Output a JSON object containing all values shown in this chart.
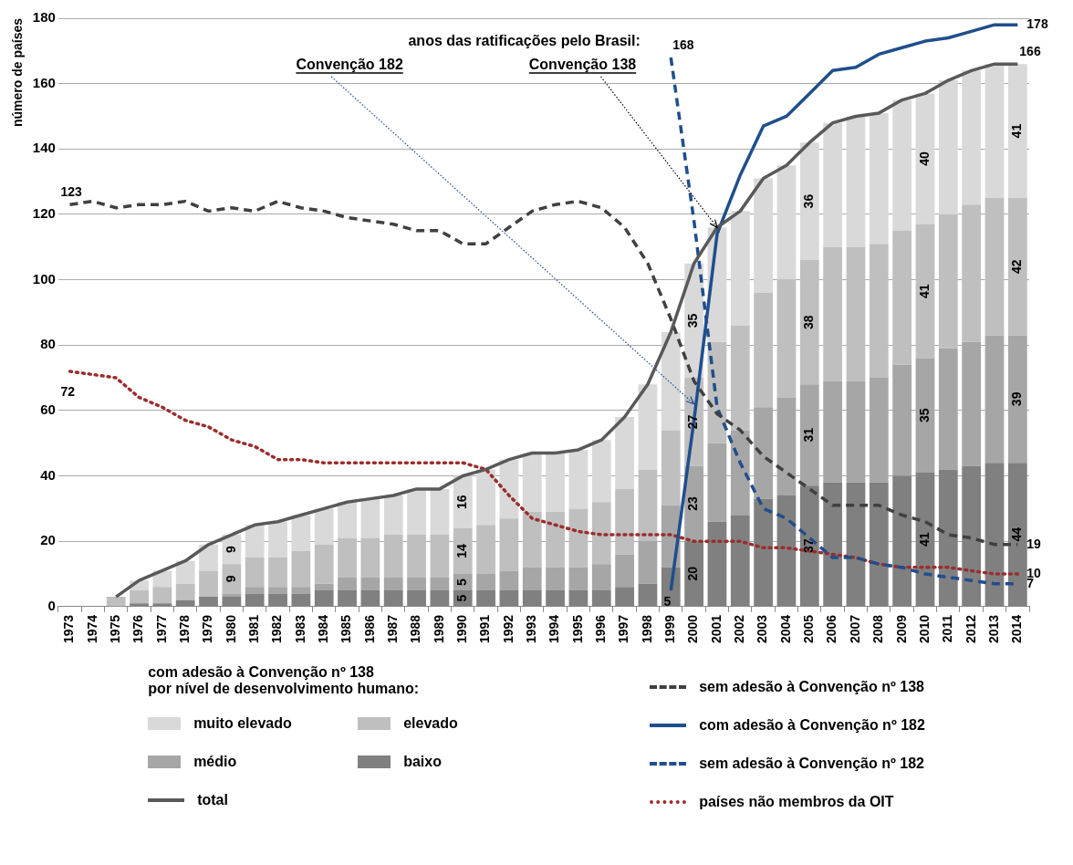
{
  "chart_data": {
    "type": "bar",
    "stacked": true,
    "ylabel": "número de países",
    "legend_title": "com adesão à Convenção nº 138\npor nível de desenvolvimento humano:",
    "legend": "bottom",
    "grid": "y",
    "ylim": [
      0,
      180
    ],
    "yticks": [
      0,
      20,
      40,
      60,
      80,
      100,
      120,
      140,
      160,
      180
    ],
    "categories": [
      "1973",
      "1974",
      "1975",
      "1976",
      "1977",
      "1978",
      "1979",
      "1980",
      "1981",
      "1982",
      "1983",
      "1984",
      "1985",
      "1986",
      "1987",
      "1988",
      "1989",
      "1990",
      "1991",
      "1992",
      "1993",
      "1994",
      "1995",
      "1996",
      "1997",
      "1998",
      "1999",
      "2000",
      "2001",
      "2002",
      "2003",
      "2004",
      "2005",
      "2006",
      "2007",
      "2008",
      "2009",
      "2010",
      "2011",
      "2012",
      "2013",
      "2014"
    ],
    "annotations": [
      "anos das ratificações pelo Brasil:",
      {
        "text": "Convenção 182",
        "x": "2000",
        "y": 62
      },
      {
        "text": "Convenção 138",
        "x": "2001",
        "y": 116
      }
    ],
    "series": [
      {
        "name": "baixo",
        "color": "#808080",
        "values": [
          null,
          null,
          0,
          1,
          1,
          2,
          3,
          3,
          4,
          4,
          4,
          5,
          5,
          5,
          5,
          5,
          5,
          5,
          5,
          5,
          5,
          5,
          5,
          5,
          6,
          7,
          12,
          20,
          26,
          28,
          33,
          34,
          37,
          38,
          38,
          38,
          40,
          41,
          42,
          43,
          44,
          44
        ],
        "value_labels": [
          null,
          null,
          null,
          null,
          null,
          null,
          null,
          null,
          null,
          null,
          null,
          null,
          null,
          null,
          null,
          null,
          null,
          "5",
          null,
          null,
          null,
          null,
          null,
          null,
          null,
          null,
          null,
          "20",
          null,
          null,
          null,
          null,
          "37",
          null,
          null,
          null,
          null,
          "41",
          null,
          null,
          null,
          "44"
        ]
      },
      {
        "name": "médio",
        "color": "#a6a6a6",
        "values": [
          null,
          null,
          0,
          0,
          0,
          0,
          0,
          1,
          2,
          2,
          2,
          2,
          4,
          4,
          4,
          4,
          4,
          5,
          5,
          6,
          7,
          7,
          7,
          8,
          10,
          13,
          19,
          23,
          24,
          26,
          28,
          30,
          31,
          31,
          31,
          32,
          34,
          35,
          37,
          38,
          39,
          39
        ],
        "value_labels": [
          null,
          null,
          null,
          null,
          null,
          null,
          null,
          null,
          null,
          null,
          null,
          null,
          null,
          null,
          null,
          null,
          null,
          "5",
          null,
          null,
          null,
          null,
          null,
          null,
          null,
          null,
          null,
          "23",
          null,
          null,
          null,
          null,
          "31",
          null,
          null,
          null,
          null,
          "35",
          null,
          null,
          null,
          "39"
        ]
      },
      {
        "name": "elevado",
        "color": "#bfbfbf",
        "values": [
          null,
          null,
          3,
          4,
          5,
          5,
          8,
          9,
          9,
          9,
          11,
          12,
          12,
          12,
          13,
          13,
          13,
          14,
          15,
          16,
          17,
          17,
          18,
          19,
          20,
          22,
          23,
          27,
          31,
          32,
          35,
          36,
          38,
          41,
          41,
          41,
          41,
          41,
          41,
          42,
          42,
          42
        ],
        "value_labels": [
          null,
          null,
          null,
          null,
          null,
          null,
          null,
          "9",
          null,
          null,
          null,
          null,
          null,
          null,
          null,
          null,
          null,
          "14",
          null,
          null,
          null,
          null,
          null,
          null,
          null,
          null,
          null,
          "27",
          null,
          null,
          null,
          null,
          "38",
          null,
          null,
          null,
          null,
          "41",
          null,
          null,
          null,
          "42"
        ]
      },
      {
        "name": "muito elevado",
        "color": "#d9d9d9",
        "values": [
          null,
          null,
          0,
          3,
          5,
          7,
          8,
          9,
          10,
          11,
          11,
          11,
          11,
          12,
          12,
          14,
          14,
          16,
          17,
          18,
          18,
          18,
          18,
          19,
          22,
          26,
          30,
          35,
          35,
          35,
          35,
          35,
          36,
          38,
          40,
          40,
          40,
          40,
          41,
          41,
          41,
          41
        ],
        "value_labels": [
          null,
          null,
          null,
          null,
          null,
          null,
          null,
          "9",
          null,
          null,
          null,
          null,
          null,
          null,
          null,
          null,
          null,
          "16",
          null,
          null,
          null,
          null,
          null,
          null,
          null,
          null,
          null,
          "35",
          null,
          null,
          null,
          null,
          "36",
          null,
          null,
          null,
          null,
          "40",
          null,
          null,
          null,
          "41"
        ]
      },
      {
        "name": "total",
        "type": "line",
        "line_style": "solid",
        "color": "#595959",
        "values": [
          null,
          null,
          3,
          8,
          11,
          14,
          19,
          22,
          25,
          26,
          28,
          30,
          32,
          33,
          34,
          36,
          36,
          40,
          42,
          45,
          47,
          47,
          48,
          51,
          58,
          68,
          84,
          105,
          116,
          121,
          131,
          135,
          142,
          148,
          150,
          151,
          155,
          157,
          161,
          164,
          166,
          166
        ],
        "value_labels": [
          null,
          null,
          null,
          null,
          null,
          null,
          null,
          null,
          null,
          null,
          null,
          null,
          null,
          null,
          null,
          null,
          null,
          null,
          null,
          null,
          null,
          null,
          null,
          null,
          null,
          null,
          null,
          null,
          null,
          null,
          null,
          null,
          null,
          null,
          null,
          null,
          null,
          null,
          null,
          null,
          null,
          "166"
        ]
      },
      {
        "name": "sem adesão à Convenção nº 138",
        "type": "line",
        "line_style": "dashed",
        "color": "#404040",
        "values": [
          123,
          124,
          122,
          123,
          123,
          124,
          121,
          122,
          121,
          124,
          122,
          121,
          119,
          118,
          117,
          115,
          115,
          111,
          111,
          116,
          121,
          123,
          124,
          122,
          116,
          105,
          88,
          69,
          59,
          54,
          46,
          41,
          36,
          31,
          31,
          31,
          28,
          26,
          22,
          21,
          19,
          19
        ],
        "value_labels": [
          "123",
          null,
          null,
          null,
          null,
          null,
          null,
          null,
          null,
          null,
          null,
          null,
          null,
          null,
          null,
          null,
          null,
          null,
          null,
          null,
          null,
          null,
          null,
          null,
          null,
          null,
          null,
          null,
          null,
          null,
          null,
          null,
          null,
          null,
          null,
          null,
          null,
          null,
          null,
          null,
          null,
          "19"
        ]
      },
      {
        "name": "com adesão à Convenção nº 182",
        "type": "line",
        "line_style": "solid",
        "color": "#1f4e8c",
        "values": [
          null,
          null,
          null,
          null,
          null,
          null,
          null,
          null,
          null,
          null,
          null,
          null,
          null,
          null,
          null,
          null,
          null,
          null,
          null,
          null,
          null,
          null,
          null,
          null,
          null,
          null,
          5,
          57,
          114,
          132,
          147,
          150,
          157,
          164,
          165,
          169,
          171,
          173,
          174,
          176,
          178,
          178
        ],
        "value_labels": [
          null,
          null,
          null,
          null,
          null,
          null,
          null,
          null,
          null,
          null,
          null,
          null,
          null,
          null,
          null,
          null,
          null,
          null,
          null,
          null,
          null,
          null,
          null,
          null,
          null,
          null,
          "5",
          null,
          null,
          null,
          null,
          null,
          null,
          null,
          null,
          null,
          null,
          null,
          null,
          null,
          null,
          "178"
        ]
      },
      {
        "name": "sem adesão à Convenção nº 182",
        "type": "line",
        "line_style": "dashed",
        "color": "#1f4e8c",
        "values": [
          null,
          null,
          null,
          null,
          null,
          null,
          null,
          null,
          null,
          null,
          null,
          null,
          null,
          null,
          null,
          null,
          null,
          null,
          null,
          null,
          null,
          null,
          null,
          null,
          null,
          null,
          168,
          118,
          61,
          44,
          30,
          27,
          21,
          15,
          15,
          13,
          12,
          10,
          9,
          8,
          7,
          7
        ],
        "value_labels": [
          null,
          null,
          null,
          null,
          null,
          null,
          null,
          null,
          null,
          null,
          null,
          null,
          null,
          null,
          null,
          null,
          null,
          null,
          null,
          null,
          null,
          null,
          null,
          null,
          null,
          null,
          "168",
          null,
          null,
          null,
          null,
          null,
          null,
          null,
          null,
          null,
          null,
          null,
          null,
          null,
          null,
          "7"
        ]
      },
      {
        "name": "países não membros da OIT",
        "type": "line",
        "line_style": "dotted",
        "color": "#9b2d2d",
        "values": [
          72,
          71,
          70,
          64,
          61,
          57,
          55,
          51,
          49,
          45,
          45,
          44,
          44,
          44,
          44,
          44,
          44,
          44,
          42,
          34,
          27,
          25,
          23,
          22,
          22,
          22,
          22,
          20,
          20,
          20,
          18,
          18,
          17,
          16,
          15,
          13,
          12,
          12,
          12,
          11,
          10,
          10
        ],
        "value_labels": [
          "72",
          null,
          null,
          null,
          null,
          null,
          null,
          null,
          null,
          null,
          null,
          null,
          null,
          null,
          null,
          null,
          null,
          null,
          null,
          null,
          null,
          null,
          null,
          null,
          null,
          null,
          null,
          null,
          null,
          null,
          null,
          null,
          null,
          null,
          null,
          null,
          null,
          null,
          null,
          null,
          null,
          "10"
        ]
      }
    ]
  }
}
